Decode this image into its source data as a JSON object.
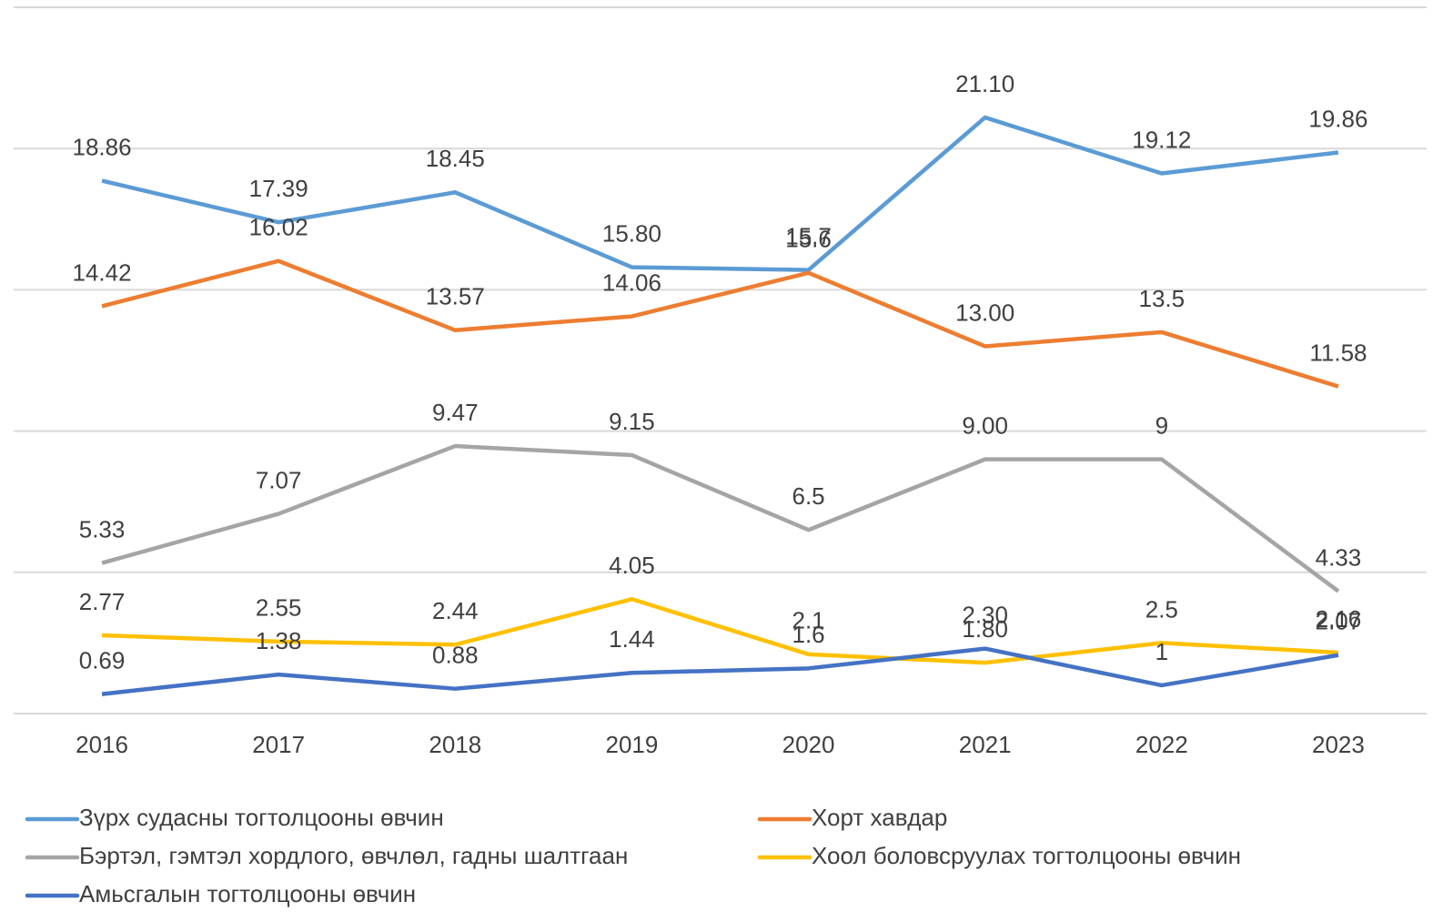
{
  "chart_data": {
    "type": "line",
    "categories": [
      "2016",
      "2017",
      "2018",
      "2019",
      "2020",
      "2021",
      "2022",
      "2023"
    ],
    "series": [
      {
        "name": "Зүрх судасны тогтолцооны өвчин",
        "color": "#5b9bd5",
        "values": [
          18.86,
          17.39,
          18.45,
          15.8,
          15.7,
          21.1,
          19.12,
          19.86
        ],
        "value_labels": [
          "18.86",
          "17.39",
          "18.45",
          "15.80",
          "15.7",
          "21.10",
          "19.12",
          "19.86"
        ]
      },
      {
        "name": "Хорт хавдар",
        "color": "#ed7d31",
        "values": [
          14.42,
          16.02,
          13.57,
          14.06,
          15.6,
          13.0,
          13.5,
          11.58
        ],
        "value_labels": [
          "14.42",
          "16.02",
          "13.57",
          "14.06",
          "15.6",
          "13.00",
          "13.5",
          "11.58"
        ]
      },
      {
        "name": "Бэртэл, гэмтэл хордлого, өвчлөл, гадны шалтгаан",
        "color": "#a5a5a5",
        "values": [
          5.33,
          7.07,
          9.47,
          9.15,
          6.5,
          9.0,
          9,
          4.33
        ],
        "value_labels": [
          "5.33",
          "7.07",
          "9.47",
          "9.15",
          "6.5",
          "9.00",
          "9",
          "4.33"
        ]
      },
      {
        "name": "Хоол боловсруулах тогтолцооны өвчин",
        "color": "#ffc000",
        "values": [
          2.77,
          2.55,
          2.44,
          4.05,
          2.1,
          1.8,
          2.5,
          2.16
        ],
        "value_labels": [
          "2.77",
          "2.55",
          "2.44",
          "4.05",
          "2.1",
          "1.80",
          "2.5",
          "2.16"
        ]
      },
      {
        "name": "Амьсгалын тогтолцооны өвчин",
        "color": "#4472c4",
        "values": [
          0.69,
          1.38,
          0.88,
          1.44,
          1.6,
          2.3,
          1,
          2.07
        ],
        "value_labels": [
          "0.69",
          "1.38",
          "0.88",
          "1.44",
          "1.6",
          "2.30",
          "1",
          "2.07"
        ]
      }
    ],
    "ylim": [
      0,
      25
    ],
    "yticks": [
      0,
      5,
      10,
      15,
      20,
      25
    ],
    "grid": true
  }
}
